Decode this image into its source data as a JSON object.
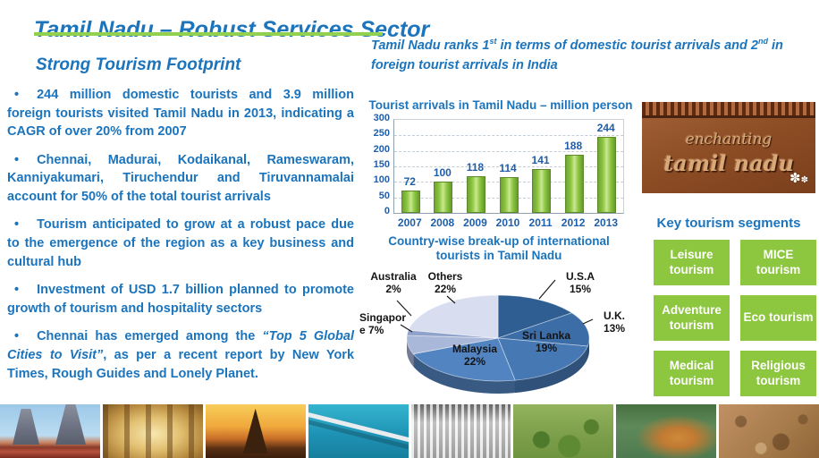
{
  "slide_title": "Tamil Nadu – Robust Services Sector",
  "colors": {
    "title_blue": "#1B74BC",
    "body_blue": "#1B74BC",
    "accent_green_underline": "#92D050",
    "segment_box_green": "#8DC63F",
    "chart_label_navy": "#1F5EA8",
    "pie_label_black": "#141414"
  },
  "left_panel": {
    "heading": "Strong Tourism Footprint",
    "bullets": [
      [
        {
          "text": "244 million domestic tourists and 3.9 million foreign tourists visited Tamil Nadu in 2013, indicating a CAGR of over 20% from 2007"
        }
      ],
      [
        {
          "text": "Chennai, Madurai, Kodaikanal, Rameswaram, Kanniyakumari, Tiruchendur and Tiruvannamalai account for 50% of the total tourist arrivals"
        }
      ],
      [
        {
          "text": "Tourism anticipated to grow at a robust pace due to the emergence of the region as a key business and cultural hub"
        }
      ],
      [
        {
          "text": "Investment of USD 1.7 billion planned to promote growth of tourism and hospitality sectors"
        }
      ],
      [
        {
          "text": "Chennai has emerged among the "
        },
        {
          "text": "“Top 5 Global Cities to Visit”",
          "italic": true
        },
        {
          "text": ", as per a recent report by New York Times, Rough Guides and Lonely Planet."
        }
      ]
    ]
  },
  "ranking_statement": {
    "segments": [
      {
        "text": "Tamil Nadu ranks 1"
      },
      {
        "text": "st",
        "sup": true
      },
      {
        "text": " in terms of  domestic tourist arrivals and 2"
      },
      {
        "text": "nd",
        "sup": true
      },
      {
        "text": " in foreign tourist arrivals in India"
      }
    ]
  },
  "chart_data": [
    {
      "type": "bar",
      "title": "Tourist arrivals in Tamil Nadu – million person",
      "categories": [
        "2007",
        "2008",
        "2009",
        "2010",
        "2011",
        "2012",
        "2013"
      ],
      "values": [
        72,
        100,
        118,
        114,
        141,
        188,
        244
      ],
      "xlabel": "",
      "ylabel": "",
      "ylim": [
        0,
        300
      ],
      "ytick_step": 50,
      "grid": true,
      "legend": "none",
      "bar_color": "#8DC63F",
      "label_color": "#1F5EA8"
    },
    {
      "type": "pie",
      "title": "Country-wise break-up  of international tourists in Tamil Nadu",
      "effect": "3d",
      "start_angle_deg": 0,
      "direction": "clockwise",
      "slices": [
        {
          "label": "U.S.A",
          "value": 15,
          "color": "#2F5E92"
        },
        {
          "label": "U.K.",
          "value": 13,
          "color": "#3C6DA6"
        },
        {
          "label": "Sri Lanka",
          "value": 19,
          "color": "#4678B3"
        },
        {
          "label": "Malaysia",
          "value": 22,
          "color": "#5284C1"
        },
        {
          "label": "Singapore",
          "value": 7,
          "color": "#A9B7D9"
        },
        {
          "label": "Australia",
          "value": 2,
          "color": "#8FA2CB"
        },
        {
          "label": "Others",
          "value": 22,
          "color": "#D8DEF0"
        }
      ]
    }
  ],
  "right_panel": {
    "logo_line1": "enchanting",
    "logo_line2": "tamil nadu",
    "logo_flower_icon": "flower-icon",
    "heading": "Key tourism segments",
    "segments": [
      "Leisure tourism",
      "MICE tourism",
      "Adventure tourism",
      "Eco tourism",
      "Medical tourism",
      "Religious tourism"
    ]
  },
  "photo_strip": [
    "madurai-temple-towers",
    "temple-pillar-corridor",
    "shore-temple-sunset",
    "pamban-bridge",
    "hogenakkal-waterfall",
    "ooty-botanical-garden",
    "tiger-in-water",
    "stone-relief-carving"
  ]
}
